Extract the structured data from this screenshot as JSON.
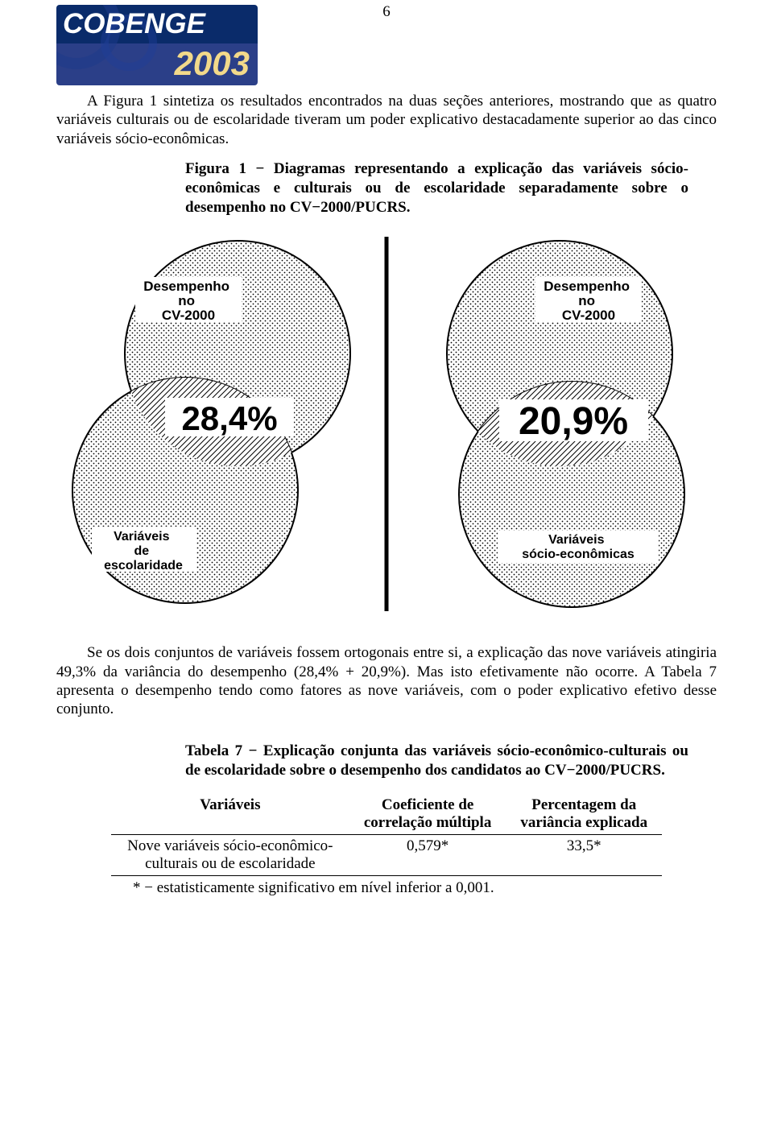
{
  "page_number": "6",
  "logo": {
    "title": "COBENGE",
    "year": "2003"
  },
  "paragraphs": {
    "p1": "A Figura 1 sintetiza os resultados encontrados na duas seções anteriores, mostrando que as quatro variáveis culturais ou de escolaridade tiveram um poder explicativo destacadamente superior ao das cinco variáveis sócio-econômicas.",
    "figcap": "Figura 1 − Diagramas representando a explicação das variáveis sócio-econômicas e culturais ou de escolaridade separadamente sobre o desempenho no CV−2000/PUCRS.",
    "p2": "Se os dois conjuntos de variáveis fossem ortogonais entre si, a explicação das nove variáveis atingiria 49,3% da variância do desempenho (28,4% + 20,9%). Mas isto efetivamente não ocorre. A Tabela 7 apresenta o desempenho tendo como fatores as nove variáveis, com o poder explicativo efetivo desse conjunto.",
    "tabcap": "Tabela 7 − Explicação conjunta das variáveis sócio-econômico-culturais ou de escolaridade sobre o desempenho dos candidatos ao CV−2000/PUCRS.",
    "footnote": "* − estatisticamente significativo em nível inferior a 0,001."
  },
  "venn": {
    "type": "venn-diagram",
    "background_color": "#ffffff",
    "circle_fill": "dot-pattern",
    "circle_stroke": "#000000",
    "label_font": "Arial",
    "label_weight": "bold",
    "left": {
      "top_circle_label": "Desempenho\nno\nCV-2000",
      "bottom_circle_label": "Variáveis\nde\nescolaridade",
      "overlap_value": "28,4%",
      "overlap_fontsize": 40
    },
    "right": {
      "top_circle_label": "Desempenho\nno\nCV-2000",
      "bottom_circle_label": "Variáveis\nsócio-econômicas",
      "overlap_value": "20,9%",
      "overlap_fontsize": 44
    },
    "divider": {
      "stroke": "#000000",
      "width": 5
    }
  },
  "table": {
    "columns": [
      "Variáveis",
      "Coeficiente de correlação múltipla",
      "Percentagem da variância explicada"
    ],
    "rows": [
      {
        "var": "Nove variáveis sócio-econômico-culturais ou de escolaridade",
        "coef": "0,579*",
        "perc": "33,5*"
      }
    ]
  }
}
